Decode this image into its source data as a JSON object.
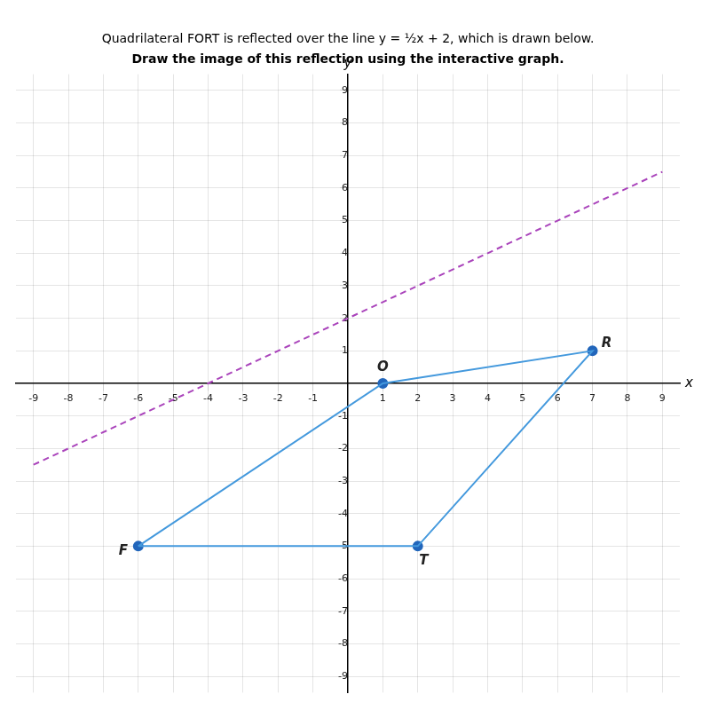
{
  "chart_data": {
    "type": "line",
    "title": "Quadrilateral FORT is reflected over the line y = ½x + 2, which is drawn below.",
    "subtitle": "Draw the image of this reflection using the interactive graph.",
    "xlabel": "x",
    "ylabel": "y",
    "xlim": [
      -9.5,
      9.5
    ],
    "ylim": [
      -9.5,
      9.5
    ],
    "xticks": [
      -9,
      -8,
      -7,
      -6,
      -5,
      -4,
      -3,
      -2,
      -1,
      1,
      2,
      3,
      4,
      5,
      6,
      7,
      8,
      9
    ],
    "yticks": [
      -9,
      -8,
      -7,
      -6,
      -5,
      -4,
      -3,
      -2,
      -1,
      1,
      2,
      3,
      4,
      5,
      6,
      7,
      8,
      9
    ],
    "grid": true,
    "series": [
      {
        "type": "line",
        "color": "#4499dd",
        "marker": "none",
        "line_style": "solid",
        "x": [
          -6,
          1,
          7,
          2,
          -6
        ],
        "values": [
          -5,
          0,
          1,
          -5,
          -5
        ]
      },
      {
        "type": "scatter",
        "color": "#2266bb",
        "marker": "circle",
        "x": [
          -6,
          1,
          7,
          2
        ],
        "values": [
          -5,
          0,
          1,
          -5
        ]
      },
      {
        "type": "line",
        "color": "#aa44bb",
        "marker": "none",
        "line_style": "dashed",
        "x": [
          -9,
          9
        ],
        "values": [
          -2.5,
          6.5
        ]
      }
    ],
    "annotations": [
      {
        "text": "F",
        "x": -6,
        "y": -5
      },
      {
        "text": "O",
        "x": 1,
        "y": 0
      },
      {
        "text": "R",
        "x": 7,
        "y": 1
      },
      {
        "text": "T",
        "x": 2,
        "y": -5
      }
    ]
  }
}
